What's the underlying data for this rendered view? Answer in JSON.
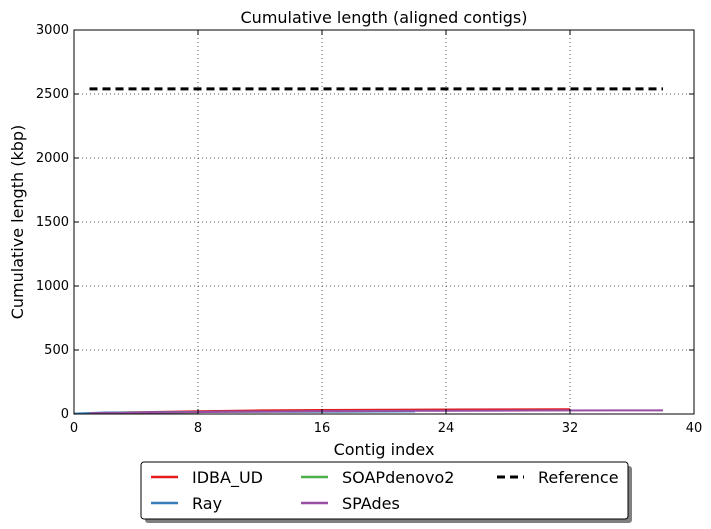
{
  "chart_data": {
    "type": "line",
    "title": "Cumulative length (aligned contigs)",
    "xlabel": "Contig index",
    "ylabel": "Cumulative length (kbp)",
    "xlim": [
      0,
      40
    ],
    "ylim": [
      0,
      3000
    ],
    "xticks": [
      "0",
      "8",
      "16",
      "24",
      "32",
      "40"
    ],
    "yticks": [
      "0",
      "500",
      "1000",
      "1500",
      "2000",
      "2500",
      "3000"
    ],
    "grid": true,
    "legend_position": "below-center",
    "series": [
      {
        "name": "IDBA_UD",
        "color": "#e41a1c",
        "style": "solid",
        "x": [
          1,
          4,
          8,
          12,
          16,
          20,
          24,
          28,
          32
        ],
        "y": [
          5,
          14,
          22,
          28,
          31,
          33,
          35,
          36,
          37
        ]
      },
      {
        "name": "Ray",
        "color": "#377eb8",
        "style": "solid",
        "x": [
          0,
          2,
          6,
          10,
          14,
          18,
          22
        ],
        "y": [
          3,
          12,
          15,
          17,
          18,
          19,
          20
        ]
      },
      {
        "name": "SOAPdenovo2",
        "color": "#4daf4a",
        "style": "solid",
        "x": [
          1,
          3,
          5,
          8
        ],
        "y": [
          4,
          9,
          12,
          13
        ]
      },
      {
        "name": "SPAdes",
        "color": "#984ea3",
        "style": "solid",
        "x": [
          1,
          5,
          10,
          15,
          20,
          25,
          30,
          35,
          38
        ],
        "y": [
          6,
          12,
          17,
          21,
          24,
          26,
          27,
          28,
          28
        ]
      },
      {
        "name": "Reference",
        "color": "#000000",
        "style": "dashed",
        "x": [
          1,
          38
        ],
        "y": [
          2540,
          2540
        ]
      }
    ]
  }
}
